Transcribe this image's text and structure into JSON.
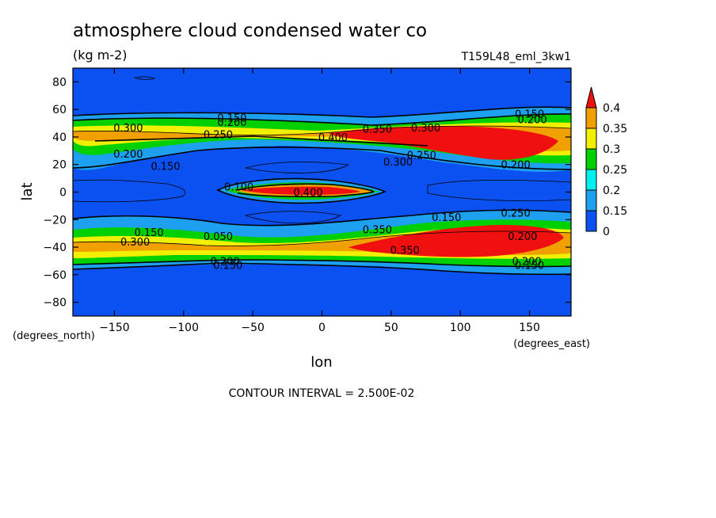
{
  "chart_data": {
    "type": "heatmap",
    "title": "atmosphere cloud condensed water co",
    "units": "(kg m-2)",
    "dataset": "T159L48_eml_3kw1",
    "xlabel": "lon",
    "ylabel": "lat",
    "x_units": "(degrees_east)",
    "y_units": "(degrees_north)",
    "xlim": [
      -180,
      180
    ],
    "ylim": [
      -90,
      90
    ],
    "x_ticks": [
      -150,
      -100,
      -50,
      0,
      50,
      100,
      150
    ],
    "y_ticks": [
      80,
      60,
      40,
      20,
      0,
      -20,
      -40,
      -60,
      -80
    ],
    "footer": "CONTOUR INTERVAL = 2.500E-02",
    "colorbar": {
      "levels": [
        "0",
        "0.15",
        "0.2",
        "0.25",
        "0.3",
        "0.35",
        "0.4"
      ],
      "colors": [
        "#0b50f0",
        "#1ea0f0",
        "#00f0f0",
        "#00d000",
        "#f0f000",
        "#f0a000",
        "#f01010"
      ]
    },
    "contour_labels": [
      {
        "text": "0.150",
        "lon": -65,
        "lat": 54
      },
      {
        "text": "0.200",
        "lon": -65,
        "lat": 51
      },
      {
        "text": "0.150",
        "lon": 150,
        "lat": 57
      },
      {
        "text": "0.200",
        "lon": 152,
        "lat": 53
      },
      {
        "text": "0.300",
        "lon": -140,
        "lat": 47
      },
      {
        "text": "0.250",
        "lon": -75,
        "lat": 42
      },
      {
        "text": "0.350",
        "lon": 40,
        "lat": 46
      },
      {
        "text": "0.300",
        "lon": 75,
        "lat": 47
      },
      {
        "text": "0.400",
        "lon": 8,
        "lat": 40
      },
      {
        "text": "0.200",
        "lon": -140,
        "lat": 28
      },
      {
        "text": "0.150",
        "lon": -113,
        "lat": 19
      },
      {
        "text": "0.250",
        "lon": 72,
        "lat": 27
      },
      {
        "text": "0.300",
        "lon": 55,
        "lat": 22
      },
      {
        "text": "0.200",
        "lon": 140,
        "lat": 20
      },
      {
        "text": "0.100",
        "lon": -60,
        "lat": 4
      },
      {
        "text": "0.400",
        "lon": -10,
        "lat": 0
      },
      {
        "text": "0.150",
        "lon": 90,
        "lat": -18
      },
      {
        "text": "0.250",
        "lon": 140,
        "lat": -15
      },
      {
        "text": "0.150",
        "lon": -125,
        "lat": -29
      },
      {
        "text": "0.300",
        "lon": -135,
        "lat": -36
      },
      {
        "text": "0.050",
        "lon": -75,
        "lat": -32
      },
      {
        "text": "0.350",
        "lon": 40,
        "lat": -27
      },
      {
        "text": "0.200",
        "lon": 145,
        "lat": -32
      },
      {
        "text": "0.350",
        "lon": 60,
        "lat": -42
      },
      {
        "text": "0.200",
        "lon": -70,
        "lat": -50
      },
      {
        "text": "0.150",
        "lon": -68,
        "lat": -53
      },
      {
        "text": "0.200",
        "lon": 148,
        "lat": -50
      },
      {
        "text": "0.150",
        "lon": 150,
        "lat": -53
      }
    ]
  }
}
